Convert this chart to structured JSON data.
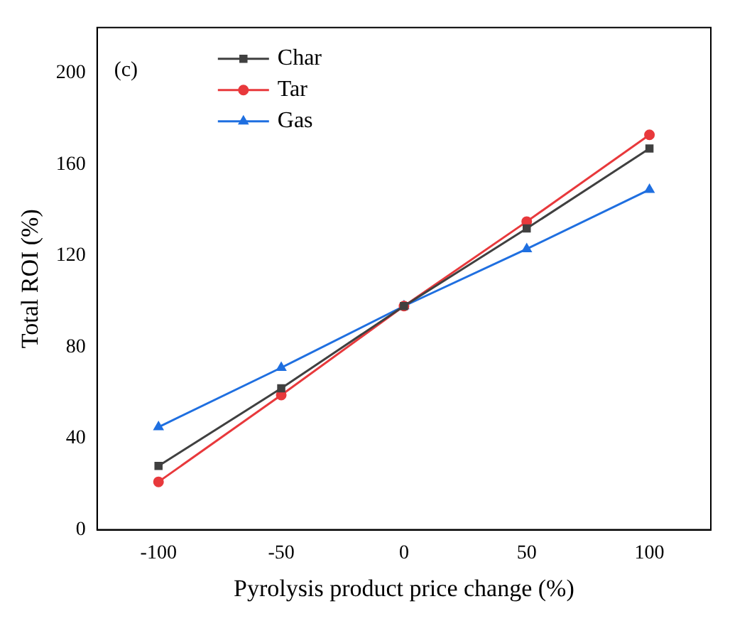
{
  "chart_data": {
    "type": "line",
    "xlabel": "Pyrolysis product price change (%)",
    "ylabel": "Total ROI (%)",
    "annotations": [
      "(c)"
    ],
    "x": [
      -100,
      -50,
      0,
      50,
      100
    ],
    "xlim": [
      -125,
      125
    ],
    "xticks": [
      -100,
      -50,
      0,
      50,
      100
    ],
    "ylim": [
      0,
      220
    ],
    "yticks": [
      0,
      40,
      80,
      120,
      160,
      200
    ],
    "grid": false,
    "legend": "top left",
    "line_style": "solid",
    "series": [
      {
        "name": "Char",
        "color": "#404040",
        "marker": "square",
        "values": [
          28,
          62,
          98,
          132,
          167
        ]
      },
      {
        "name": "Tar",
        "color": "#e8393c",
        "marker": "circle",
        "values": [
          21,
          59,
          98,
          135,
          173
        ]
      },
      {
        "name": "Gas",
        "color": "#1f6fe0",
        "marker": "triangle",
        "values": [
          45,
          71,
          98,
          123,
          149
        ]
      }
    ]
  }
}
